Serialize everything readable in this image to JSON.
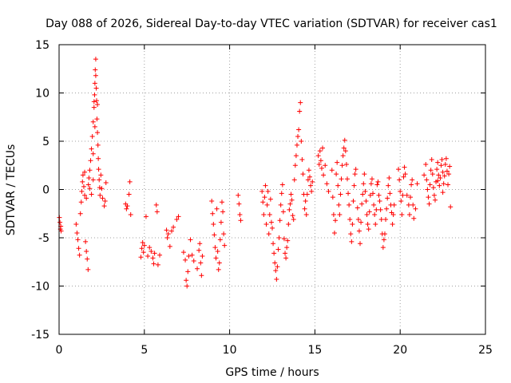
{
  "chart_data": {
    "type": "scatter",
    "title": "Day 088 of 2026, Sidereal Day-to-day VTEC variation (SDTVAR) for receiver cas1",
    "xlabel": "GPS time / hours",
    "ylabel": "SDTVAR / TECUs",
    "xlim": [
      0,
      25
    ],
    "ylim": [
      -15,
      15
    ],
    "xticks": [
      "0",
      "5",
      "10",
      "15",
      "20",
      "25"
    ],
    "yticks": [
      "-15",
      "-10",
      "-5",
      "0",
      "5",
      "10",
      "15"
    ],
    "xtick_values": [
      0,
      5,
      10,
      15,
      20,
      25
    ],
    "ytick_values": [
      -15,
      -10,
      -5,
      0,
      5,
      10,
      15
    ],
    "grid": true,
    "marker": "+",
    "color": "#ff0000",
    "series": [
      {
        "name": "SDTVAR",
        "points": [
          [
            0.02,
            -2.9
          ],
          [
            0.05,
            -3.4
          ],
          [
            0.08,
            -4.1
          ],
          [
            0.1,
            -3.8
          ],
          [
            0.12,
            -4.3
          ],
          [
            1.0,
            -3.6
          ],
          [
            1.05,
            -4.5
          ],
          [
            1.1,
            -5.2
          ],
          [
            1.15,
            -6.1
          ],
          [
            1.2,
            -6.8
          ],
          [
            1.25,
            -2.5
          ],
          [
            1.3,
            -1.3
          ],
          [
            1.33,
            -0.2
          ],
          [
            1.37,
            0.8
          ],
          [
            1.4,
            1.5
          ],
          [
            1.45,
            0.3
          ],
          [
            1.5,
            -0.6
          ],
          [
            1.55,
            -5.4
          ],
          [
            1.6,
            -6.4
          ],
          [
            1.65,
            -7.2
          ],
          [
            1.7,
            -8.3
          ],
          [
            1.72,
            0.5
          ],
          [
            1.75,
            1.2
          ],
          [
            1.8,
            2.0
          ],
          [
            1.85,
            3.0
          ],
          [
            1.9,
            4.2
          ],
          [
            1.95,
            5.5
          ],
          [
            2.0,
            7.0
          ],
          [
            2.05,
            8.5
          ],
          [
            2.08,
            9.8
          ],
          [
            2.1,
            11.0
          ],
          [
            2.12,
            12.4
          ],
          [
            2.15,
            13.5
          ],
          [
            2.18,
            10.5
          ],
          [
            2.2,
            9.2
          ],
          [
            2.22,
            7.3
          ],
          [
            2.25,
            5.9
          ],
          [
            2.28,
            4.6
          ],
          [
            2.3,
            3.2
          ],
          [
            2.32,
            2.1
          ],
          [
            2.35,
            1.0
          ],
          [
            2.38,
            0.2
          ],
          [
            2.4,
            -0.6
          ],
          [
            2.45,
            1.5
          ],
          [
            2.5,
            0.1
          ],
          [
            2.55,
            -0.9
          ],
          [
            2.65,
            -1.7
          ],
          [
            2.7,
            -1.2
          ],
          [
            2.75,
            0.7
          ],
          [
            3.9,
            -1.5
          ],
          [
            3.95,
            -2.0
          ],
          [
            4.0,
            -1.7
          ],
          [
            4.1,
            -0.5
          ],
          [
            4.15,
            0.8
          ],
          [
            4.2,
            -2.6
          ],
          [
            4.8,
            -7.0
          ],
          [
            4.85,
            -6.1
          ],
          [
            4.9,
            -5.5
          ],
          [
            4.95,
            -6.5
          ],
          [
            5.0,
            -5.8
          ],
          [
            5.1,
            -2.8
          ],
          [
            5.2,
            -6.9
          ],
          [
            5.3,
            -6.0
          ],
          [
            5.4,
            -6.4
          ],
          [
            5.5,
            -7.1
          ],
          [
            5.55,
            -7.7
          ],
          [
            5.6,
            -6.6
          ],
          [
            5.7,
            -1.6
          ],
          [
            5.75,
            -2.3
          ],
          [
            5.8,
            -7.8
          ],
          [
            5.9,
            -6.8
          ],
          [
            6.3,
            -4.2
          ],
          [
            6.35,
            -5.0
          ],
          [
            6.4,
            -4.6
          ],
          [
            6.5,
            -5.9
          ],
          [
            6.6,
            -4.3
          ],
          [
            6.7,
            -3.9
          ],
          [
            6.9,
            -3.1
          ],
          [
            7.0,
            -2.8
          ],
          [
            7.3,
            -6.5
          ],
          [
            7.4,
            -7.3
          ],
          [
            7.45,
            -9.4
          ],
          [
            7.5,
            -10.0
          ],
          [
            7.55,
            -8.5
          ],
          [
            7.6,
            -6.9
          ],
          [
            7.7,
            -5.2
          ],
          [
            7.8,
            -6.8
          ],
          [
            7.9,
            -7.4
          ],
          [
            8.1,
            -8.2
          ],
          [
            8.2,
            -6.3
          ],
          [
            8.25,
            -5.6
          ],
          [
            8.3,
            -7.6
          ],
          [
            8.35,
            -8.9
          ],
          [
            8.4,
            -6.9
          ],
          [
            8.95,
            -1.2
          ],
          [
            9.0,
            -2.5
          ],
          [
            9.05,
            -3.6
          ],
          [
            9.1,
            -4.7
          ],
          [
            9.15,
            -6.0
          ],
          [
            9.2,
            -7.1
          ],
          [
            9.25,
            -2.0
          ],
          [
            9.3,
            -6.4
          ],
          [
            9.35,
            -8.3
          ],
          [
            9.4,
            -7.6
          ],
          [
            9.45,
            -5.2
          ],
          [
            9.5,
            -3.4
          ],
          [
            9.55,
            -1.3
          ],
          [
            9.6,
            -2.3
          ],
          [
            9.65,
            -4.6
          ],
          [
            9.7,
            -5.8
          ],
          [
            10.5,
            -0.6
          ],
          [
            10.55,
            -1.5
          ],
          [
            10.6,
            -2.6
          ],
          [
            10.65,
            -3.2
          ],
          [
            11.9,
            -0.2
          ],
          [
            11.95,
            -1.3
          ],
          [
            12.0,
            -2.6
          ],
          [
            12.05,
            -0.8
          ],
          [
            12.1,
            0.4
          ],
          [
            12.15,
            -3.6
          ],
          [
            12.2,
            -1.6
          ],
          [
            12.25,
            -0.2
          ],
          [
            12.3,
            -4.6
          ],
          [
            12.35,
            -2.6
          ],
          [
            12.4,
            -1.0
          ],
          [
            12.45,
            -3.4
          ],
          [
            12.5,
            -4.0
          ],
          [
            12.55,
            -5.6
          ],
          [
            12.6,
            -6.6
          ],
          [
            12.65,
            -7.6
          ],
          [
            12.7,
            -8.4
          ],
          [
            12.75,
            -9.3
          ],
          [
            12.8,
            -8.0
          ],
          [
            12.85,
            -6.2
          ],
          [
            12.9,
            -5.0
          ],
          [
            12.95,
            -3.2
          ],
          [
            13.0,
            -1.6
          ],
          [
            13.05,
            -0.4
          ],
          [
            13.1,
            0.5
          ],
          [
            13.15,
            -2.3
          ],
          [
            13.2,
            -5.1
          ],
          [
            13.25,
            -6.6
          ],
          [
            13.3,
            -7.1
          ],
          [
            13.35,
            -6.0
          ],
          [
            13.4,
            -5.3
          ],
          [
            13.45,
            -3.6
          ],
          [
            13.5,
            -2.1
          ],
          [
            13.55,
            -1.5
          ],
          [
            13.6,
            -0.5
          ],
          [
            13.65,
            -1.1
          ],
          [
            13.7,
            -2.7
          ],
          [
            13.75,
            -3.1
          ],
          [
            13.8,
            1.0
          ],
          [
            13.85,
            2.5
          ],
          [
            13.9,
            3.5
          ],
          [
            13.95,
            4.6
          ],
          [
            14.0,
            5.5
          ],
          [
            14.05,
            6.2
          ],
          [
            14.1,
            8.1
          ],
          [
            14.15,
            9.0
          ],
          [
            14.2,
            5.0
          ],
          [
            14.25,
            3.1
          ],
          [
            14.3,
            1.6
          ],
          [
            14.35,
            -0.5
          ],
          [
            14.4,
            -2.0
          ],
          [
            14.45,
            -1.2
          ],
          [
            14.5,
            -2.6
          ],
          [
            14.55,
            -0.5
          ],
          [
            14.6,
            1.0
          ],
          [
            14.65,
            2.0
          ],
          [
            14.7,
            1.3
          ],
          [
            14.75,
            0.4
          ],
          [
            14.8,
            -0.2
          ],
          [
            14.85,
            0.8
          ],
          [
            15.2,
            3.5
          ],
          [
            15.25,
            2.6
          ],
          [
            15.3,
            4.0
          ],
          [
            15.35,
            3.0
          ],
          [
            15.4,
            2.2
          ],
          [
            15.45,
            4.3
          ],
          [
            15.5,
            1.5
          ],
          [
            15.6,
            2.5
          ],
          [
            15.7,
            0.6
          ],
          [
            15.8,
            -0.2
          ],
          [
            16.0,
            2.0
          ],
          [
            16.05,
            -0.8
          ],
          [
            16.1,
            -2.6
          ],
          [
            16.15,
            -4.5
          ],
          [
            16.2,
            -3.2
          ],
          [
            16.25,
            1.6
          ],
          [
            16.3,
            2.8
          ],
          [
            16.35,
            0.4
          ],
          [
            16.4,
            -1.6
          ],
          [
            16.45,
            -2.6
          ],
          [
            16.5,
            -0.5
          ],
          [
            16.55,
            1.1
          ],
          [
            16.6,
            2.5
          ],
          [
            16.65,
            3.5
          ],
          [
            16.7,
            4.3
          ],
          [
            16.75,
            5.1
          ],
          [
            16.8,
            4.0
          ],
          [
            16.85,
            2.6
          ],
          [
            16.9,
            1.1
          ],
          [
            16.95,
            -0.4
          ],
          [
            17.0,
            -1.6
          ],
          [
            17.05,
            -3.1
          ],
          [
            17.1,
            -4.6
          ],
          [
            17.15,
            -5.4
          ],
          [
            17.2,
            -3.6
          ],
          [
            17.25,
            -1.2
          ],
          [
            17.3,
            0.4
          ],
          [
            17.35,
            1.6
          ],
          [
            17.4,
            2.1
          ],
          [
            17.5,
            -1.9
          ],
          [
            17.55,
            -3.1
          ],
          [
            17.6,
            -4.3
          ],
          [
            17.65,
            -5.6
          ],
          [
            17.7,
            -3.4
          ],
          [
            17.75,
            -1.5
          ],
          [
            17.8,
            -0.5
          ],
          [
            17.85,
            0.6
          ],
          [
            17.9,
            1.6
          ],
          [
            17.95,
            -0.2
          ],
          [
            18.0,
            -1.2
          ],
          [
            18.05,
            -2.6
          ],
          [
            18.1,
            -3.6
          ],
          [
            18.15,
            -4.1
          ],
          [
            18.2,
            -2.3
          ],
          [
            18.25,
            -0.6
          ],
          [
            18.3,
            0.6
          ],
          [
            18.35,
            1.1
          ],
          [
            18.4,
            -0.4
          ],
          [
            18.45,
            -1.6
          ],
          [
            18.5,
            -2.6
          ],
          [
            18.55,
            -3.6
          ],
          [
            18.6,
            -2.1
          ],
          [
            18.65,
            0.5
          ],
          [
            18.7,
            0.8
          ],
          [
            18.75,
            -0.6
          ],
          [
            18.8,
            -1.2
          ],
          [
            18.85,
            -2.1
          ],
          [
            18.9,
            -3.1
          ],
          [
            18.95,
            -4.6
          ],
          [
            19.0,
            -6.0
          ],
          [
            19.05,
            -5.2
          ],
          [
            19.1,
            -4.6
          ],
          [
            19.15,
            -3.1
          ],
          [
            19.2,
            -2.0
          ],
          [
            19.25,
            -0.9
          ],
          [
            19.3,
            0.4
          ],
          [
            19.35,
            1.2
          ],
          [
            19.4,
            -0.4
          ],
          [
            19.45,
            -1.6
          ],
          [
            19.5,
            -2.4
          ],
          [
            19.55,
            -3.6
          ],
          [
            19.6,
            -2.6
          ],
          [
            19.65,
            -1.6
          ],
          [
            19.9,
            2.1
          ],
          [
            19.95,
            1.0
          ],
          [
            20.0,
            -0.2
          ],
          [
            20.05,
            -1.2
          ],
          [
            20.1,
            -2.6
          ],
          [
            20.15,
            -0.6
          ],
          [
            20.2,
            1.3
          ],
          [
            20.25,
            2.3
          ],
          [
            20.3,
            1.6
          ],
          [
            20.4,
            -0.6
          ],
          [
            20.5,
            -1.6
          ],
          [
            20.55,
            -2.6
          ],
          [
            20.6,
            -0.8
          ],
          [
            20.65,
            0.5
          ],
          [
            20.7,
            1.0
          ],
          [
            20.75,
            -1.6
          ],
          [
            20.8,
            -3.0
          ],
          [
            20.9,
            -2.0
          ],
          [
            21.0,
            0.6
          ],
          [
            21.5,
            2.6
          ],
          [
            21.55,
            1.0
          ],
          [
            21.6,
            0.0
          ],
          [
            21.65,
            -0.8
          ],
          [
            21.7,
            -1.5
          ],
          [
            21.75,
            0.5
          ],
          [
            21.8,
            2.0
          ],
          [
            21.85,
            3.1
          ],
          [
            21.9,
            1.6
          ],
          [
            21.95,
            0.2
          ],
          [
            22.0,
            -0.6
          ],
          [
            22.05,
            -1.1
          ],
          [
            22.1,
            0.8
          ],
          [
            22.15,
            2.1
          ],
          [
            22.2,
            2.8
          ],
          [
            22.25,
            1.5
          ],
          [
            22.3,
            0.4
          ],
          [
            22.35,
            1.2
          ],
          [
            22.4,
            2.5
          ],
          [
            22.45,
            3.1
          ],
          [
            22.5,
            1.8
          ],
          [
            22.55,
            0.6
          ],
          [
            22.6,
            1.4
          ],
          [
            22.65,
            2.6
          ],
          [
            22.7,
            3.2
          ],
          [
            22.75,
            1.9
          ],
          [
            22.8,
            0.5
          ],
          [
            22.85,
            1.6
          ],
          [
            22.9,
            2.4
          ],
          [
            22.95,
            -1.8
          ],
          [
            22.5,
            -0.3
          ],
          [
            22.2,
            0.9
          ],
          [
            21.4,
            1.5
          ],
          [
            2.0,
            1.0
          ],
          [
            1.9,
            -0.5
          ],
          [
            1.8,
            0.1
          ],
          [
            1.6,
            -0.9
          ],
          [
            1.5,
            1.8
          ],
          [
            2.15,
            11.8
          ],
          [
            2.05,
            9.1
          ],
          [
            2.1,
            6.5
          ],
          [
            2.0,
            3.7
          ],
          [
            2.25,
            8.8
          ]
        ]
      }
    ]
  }
}
